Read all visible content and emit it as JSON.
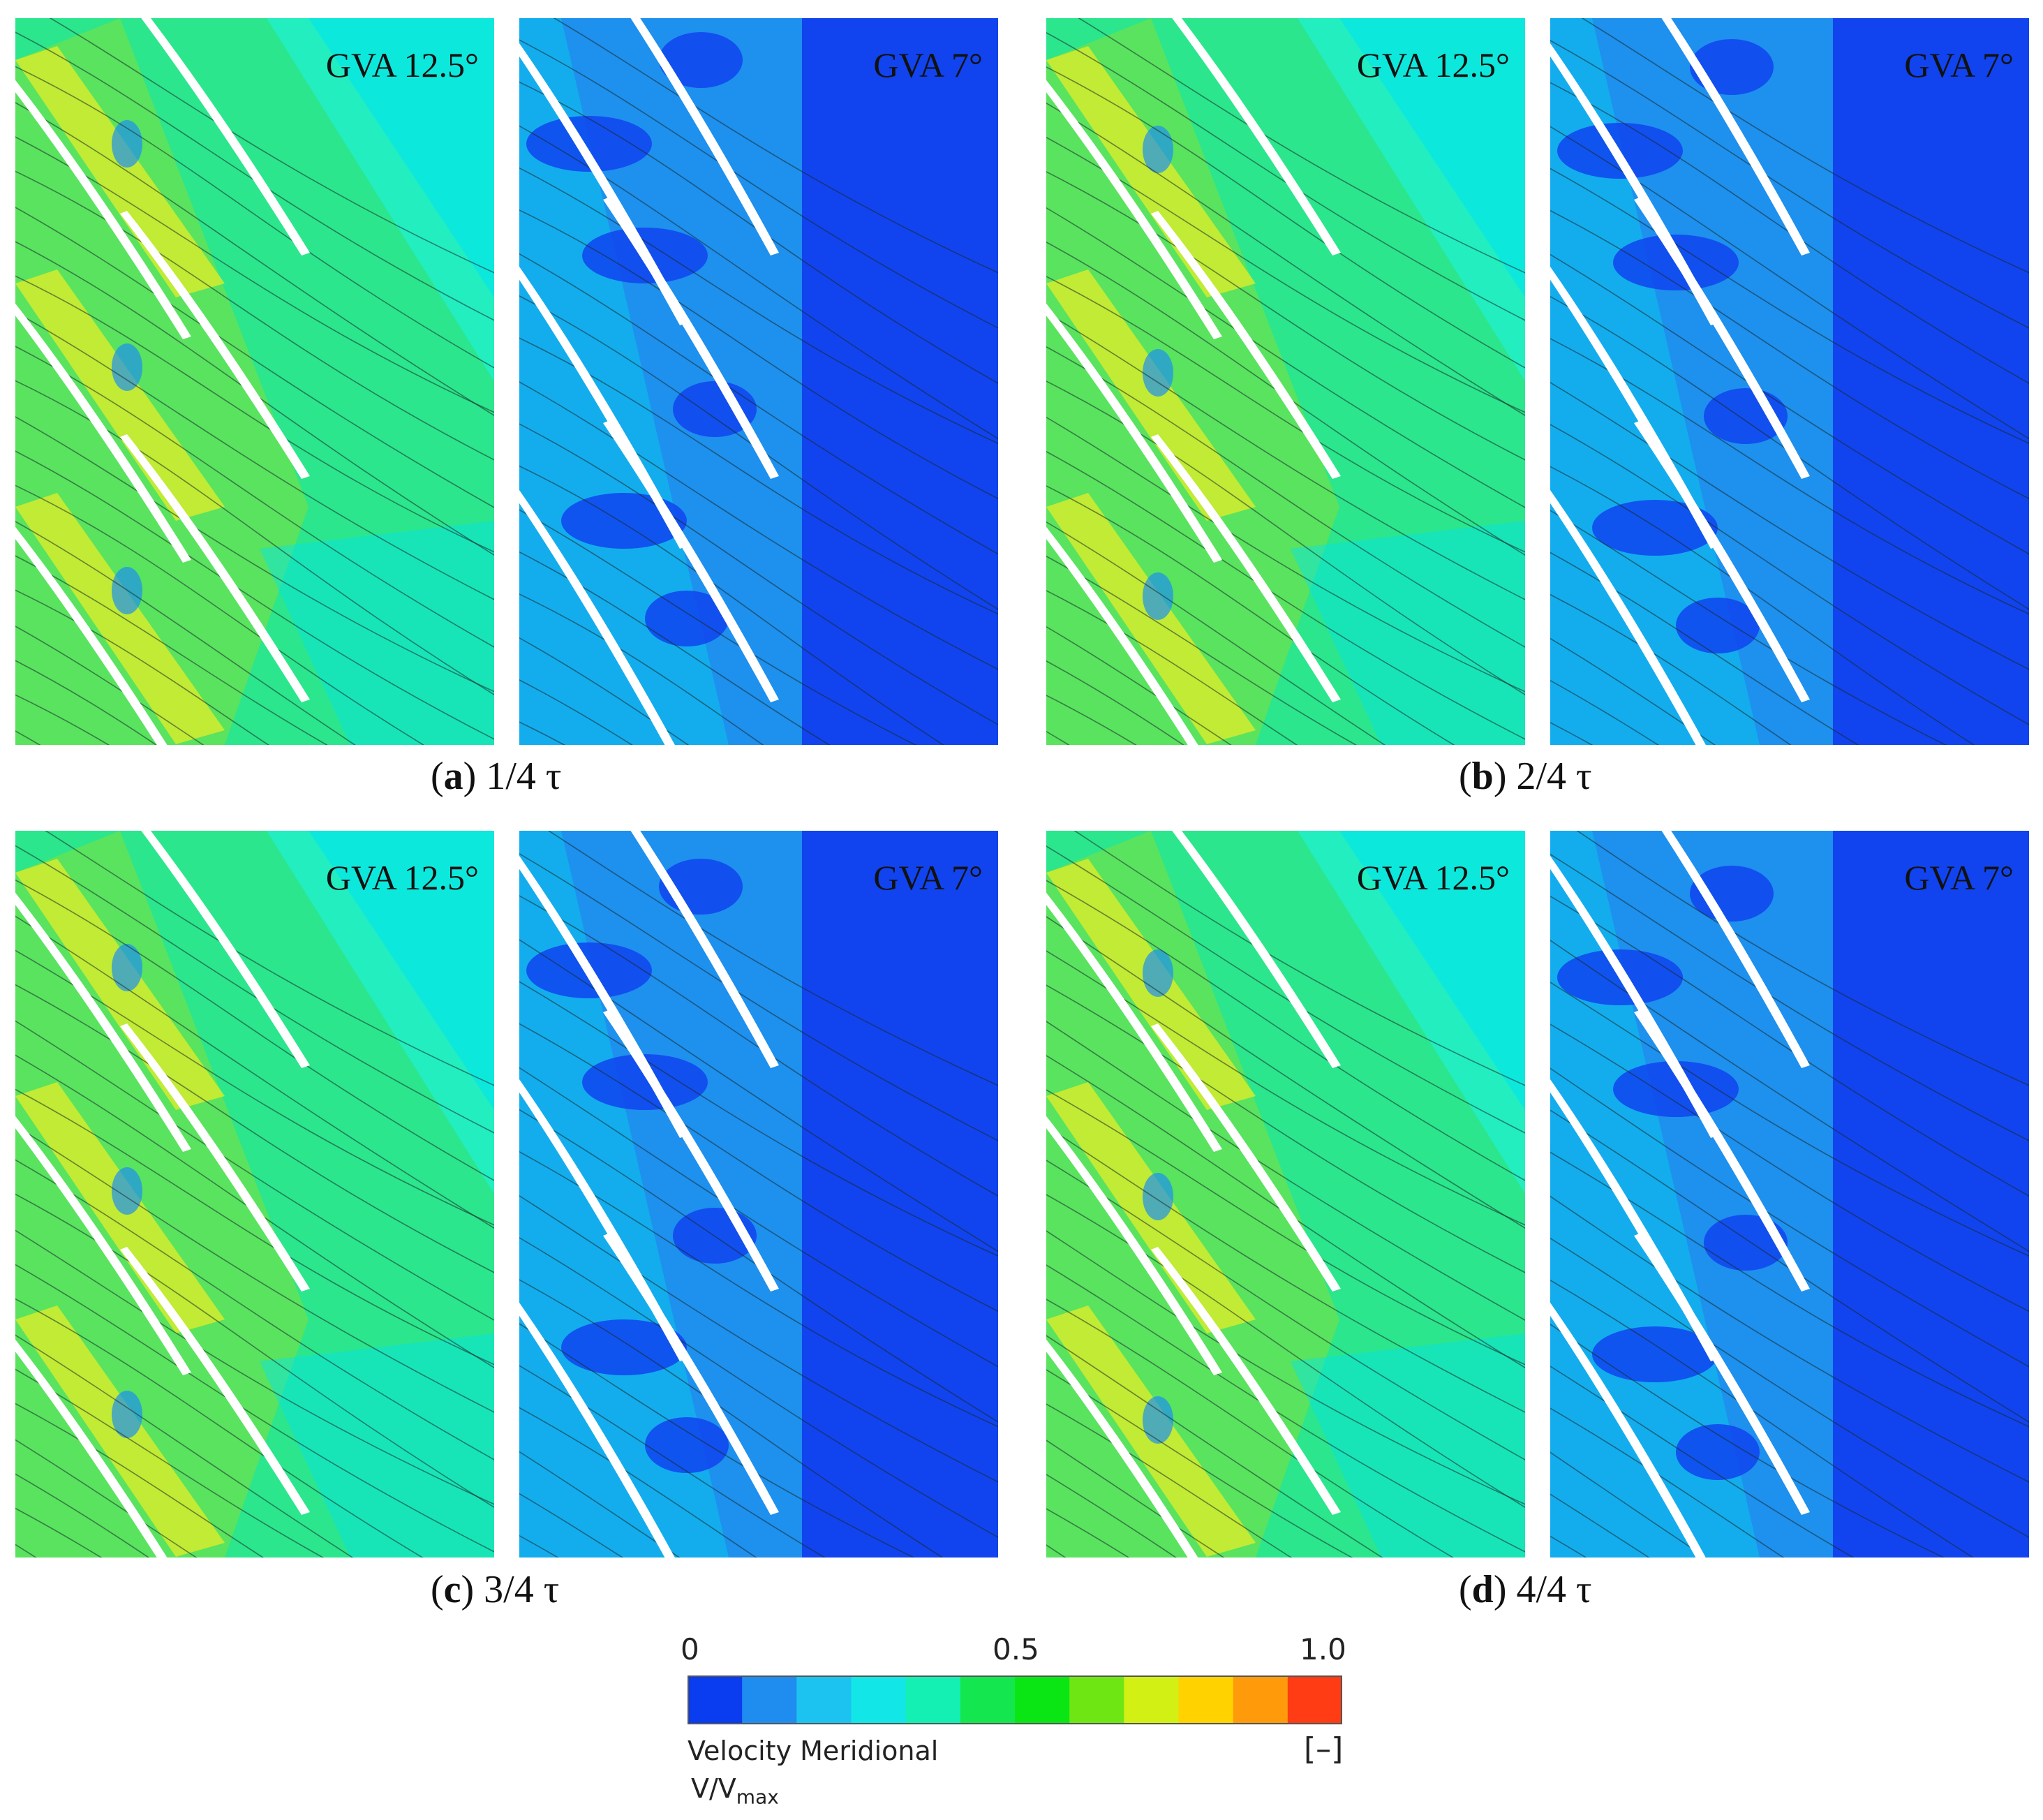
{
  "figures": [
    {
      "id": "a",
      "caption_letter": "a",
      "caption_text": "1/4 τ",
      "left_label": "GVA 12.5°",
      "right_label": "GVA 7°"
    },
    {
      "id": "b",
      "caption_letter": "b",
      "caption_text": "2/4 τ",
      "left_label": "GVA 12.5°",
      "right_label": "GVA 7°"
    },
    {
      "id": "c",
      "caption_letter": "c",
      "caption_text": "3/4 τ",
      "left_label": "GVA 12.5°",
      "right_label": "GVA 7°"
    },
    {
      "id": "d",
      "caption_letter": "d",
      "caption_text": "4/4 τ",
      "left_label": "GVA 12.5°",
      "right_label": "GVA 7°"
    }
  ],
  "legend": {
    "tick_min": "0",
    "tick_mid": "0.5",
    "tick_max": "1.0",
    "title": "Velocity Meridional",
    "unit": "[–]",
    "quantity_main": "V/V",
    "quantity_sub": "max",
    "colors": [
      "#0a3cf0",
      "#1f8cf0",
      "#1cc3f0",
      "#12e6e6",
      "#14f0b4",
      "#14e650",
      "#0ae614",
      "#6ee614",
      "#d2f014",
      "#ffd200",
      "#ff9b0a",
      "#ff3c14"
    ]
  },
  "colors": {
    "deep_blue": "#1144ee",
    "mid_blue": "#1e90ee",
    "cyan": "#00e5ee",
    "aqua": "#22eec0",
    "green": "#33e060",
    "yellow": "#eeee22",
    "blade": "#ffffff"
  }
}
